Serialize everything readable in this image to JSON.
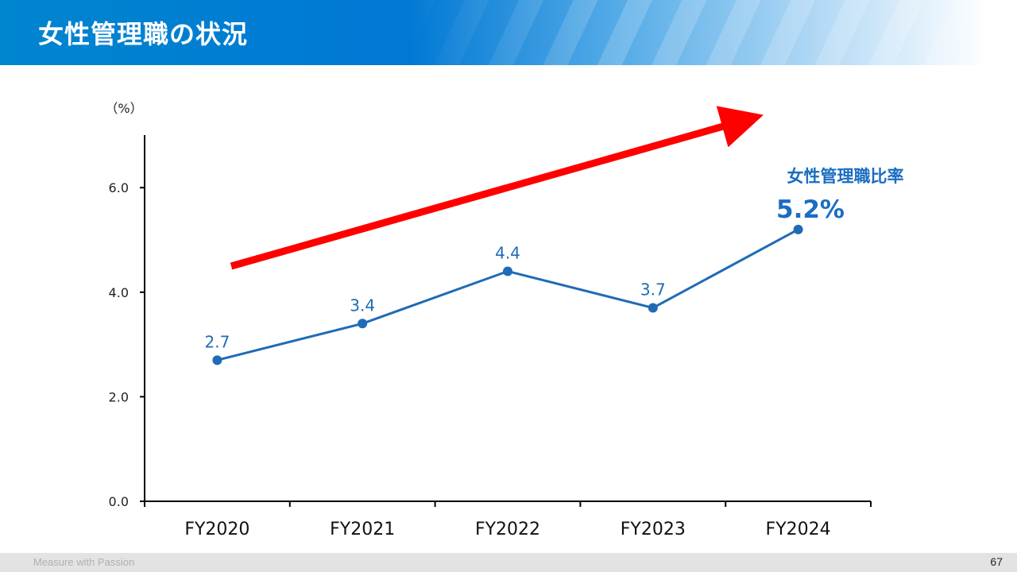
{
  "slide": {
    "title": "女性管理職の状況",
    "footer_text": "Measure with Passion",
    "page_number": "67"
  },
  "colors": {
    "series": "#1f6bb5",
    "trend_arrow": "#ff0000",
    "callout": "#1b6dc1"
  },
  "chart_data": {
    "type": "line",
    "unit_label": "（%）",
    "categories": [
      "FY2020",
      "FY2021",
      "FY2022",
      "FY2023",
      "FY2024"
    ],
    "series": [
      {
        "values": [
          2.7,
          3.4,
          4.4,
          3.7,
          5.2
        ],
        "data_labels": [
          "2.7",
          "3.4",
          "4.4",
          "3.7",
          ""
        ]
      }
    ],
    "ylim": [
      0,
      7
    ],
    "yticks": [
      0,
      2,
      4,
      6
    ],
    "ytick_labels": [
      "0.0",
      "2.0",
      "4.0",
      "6.0"
    ],
    "grid": false,
    "annotation": {
      "title": "女性管理職比率",
      "value": "5.2%"
    },
    "trend_arrow": true
  }
}
